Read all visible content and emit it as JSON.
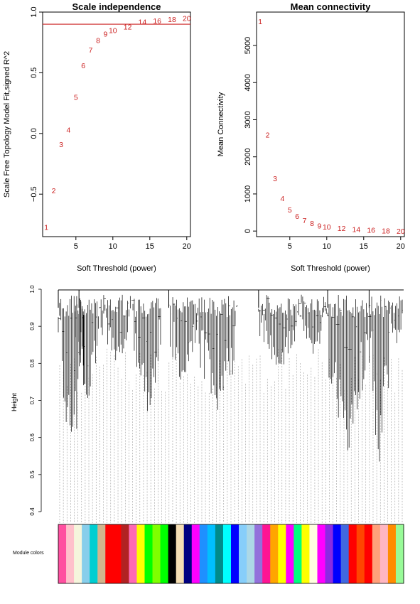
{
  "chart_data": [
    {
      "type": "scatter",
      "title": "Scale independence",
      "xlabel": "Soft Threshold (power)",
      "ylabel": "Scale Free Topology Model Fit,signed R^2",
      "xlim": [
        0.5,
        20.5
      ],
      "ylim": [
        -0.85,
        1.0
      ],
      "xticks": [
        5,
        10,
        15,
        20
      ],
      "yticks": [
        -0.5,
        0.0,
        0.5,
        1.0
      ],
      "ytick_labels": [
        "−0.5",
        "0.0",
        "0.5",
        "1.0"
      ],
      "threshold_line": 0.9,
      "threshold_color": "#cc2222",
      "point_color": "#cc2222",
      "points": [
        {
          "x": 1,
          "y": -0.77,
          "label": "1"
        },
        {
          "x": 2,
          "y": -0.47,
          "label": "2"
        },
        {
          "x": 3,
          "y": -0.09,
          "label": "3"
        },
        {
          "x": 4,
          "y": 0.03,
          "label": "4"
        },
        {
          "x": 5,
          "y": 0.3,
          "label": "5"
        },
        {
          "x": 6,
          "y": 0.56,
          "label": "6"
        },
        {
          "x": 7,
          "y": 0.69,
          "label": "7"
        },
        {
          "x": 8,
          "y": 0.77,
          "label": "8"
        },
        {
          "x": 9,
          "y": 0.82,
          "label": "9"
        },
        {
          "x": 10,
          "y": 0.85,
          "label": "10"
        },
        {
          "x": 12,
          "y": 0.88,
          "label": "12"
        },
        {
          "x": 14,
          "y": 0.92,
          "label": "14"
        },
        {
          "x": 16,
          "y": 0.93,
          "label": "16"
        },
        {
          "x": 18,
          "y": 0.94,
          "label": "18"
        },
        {
          "x": 20,
          "y": 0.95,
          "label": "20"
        }
      ]
    },
    {
      "type": "scatter",
      "title": "Mean connectivity",
      "xlabel": "Soft Threshold (power)",
      "ylabel": "Mean Connectivity",
      "xlim": [
        0.5,
        20.5
      ],
      "ylim": [
        -150,
        5900
      ],
      "xticks": [
        5,
        10,
        15,
        20
      ],
      "yticks": [
        0,
        1000,
        2000,
        3000,
        4000,
        5000
      ],
      "point_color": "#cc2222",
      "points": [
        {
          "x": 1,
          "y": 5650,
          "label": "1"
        },
        {
          "x": 2,
          "y": 2600,
          "label": "2"
        },
        {
          "x": 3,
          "y": 1420,
          "label": "3"
        },
        {
          "x": 4,
          "y": 880,
          "label": "4"
        },
        {
          "x": 5,
          "y": 580,
          "label": "5"
        },
        {
          "x": 6,
          "y": 410,
          "label": "6"
        },
        {
          "x": 7,
          "y": 290,
          "label": "7"
        },
        {
          "x": 8,
          "y": 210,
          "label": "8"
        },
        {
          "x": 9,
          "y": 150,
          "label": "9"
        },
        {
          "x": 10,
          "y": 120,
          "label": "10"
        },
        {
          "x": 12,
          "y": 80,
          "label": "12"
        },
        {
          "x": 14,
          "y": 50,
          "label": "14"
        },
        {
          "x": 16,
          "y": 30,
          "label": "16"
        },
        {
          "x": 18,
          "y": 10,
          "label": "18"
        },
        {
          "x": 20,
          "y": 0,
          "label": "20"
        }
      ]
    },
    {
      "type": "dendrogram",
      "ylabel": "Height",
      "ylim": [
        0.4,
        1.0
      ],
      "yticks": [
        0.4,
        0.5,
        0.6,
        0.7,
        0.8,
        0.9,
        1.0
      ],
      "ytick_labels": [
        "0.4",
        "0.5",
        "0.6",
        "0.7",
        "0.8",
        "0.9",
        "1.0"
      ],
      "color_bar_label": "Module colors",
      "branches": [
        {
          "from": 0.0,
          "to": 0.08,
          "min": 0.45
        },
        {
          "from": 0.05,
          "to": 0.12,
          "min": 0.62
        },
        {
          "from": 0.12,
          "to": 0.22,
          "min": 0.75
        },
        {
          "from": 0.22,
          "to": 0.3,
          "min": 0.58
        },
        {
          "from": 0.32,
          "to": 0.4,
          "min": 0.66
        },
        {
          "from": 0.4,
          "to": 0.52,
          "min": 0.57
        },
        {
          "from": 0.58,
          "to": 0.7,
          "min": 0.72
        },
        {
          "from": 0.7,
          "to": 0.78,
          "min": 0.77
        },
        {
          "from": 0.78,
          "to": 0.9,
          "min": 0.45
        },
        {
          "from": 0.9,
          "to": 0.96,
          "min": 0.41
        },
        {
          "from": 0.96,
          "to": 1.0,
          "min": 0.8
        }
      ],
      "module_colors": [
        "#ff4fa0",
        "#ffc0cb",
        "#f5f5dc",
        "#87ceeb",
        "#00ced1",
        "#d2b48c",
        "#ff0000",
        "#ff0000",
        "#b22222",
        "#ff69b4",
        "#ffff00",
        "#00ff00",
        "#7fff00",
        "#00ff00",
        "#000000",
        "#f5deb3",
        "#000080",
        "#ff00ff",
        "#1e90ff",
        "#00bfff",
        "#008b8b",
        "#00ffff",
        "#0000ff",
        "#87cefa",
        "#add8e6",
        "#9370db",
        "#ff1493",
        "#ffa500",
        "#ffff00",
        "#ff00ff",
        "#00ff7f",
        "#ffff00",
        "#ffffe0",
        "#ff00ff",
        "#8a2be2",
        "#0000ff",
        "#4169e1",
        "#ff0000",
        "#ff4500",
        "#ff0000",
        "#ffa07a",
        "#ffb6c1",
        "#ff8c00",
        "#98fb98"
      ]
    }
  ]
}
